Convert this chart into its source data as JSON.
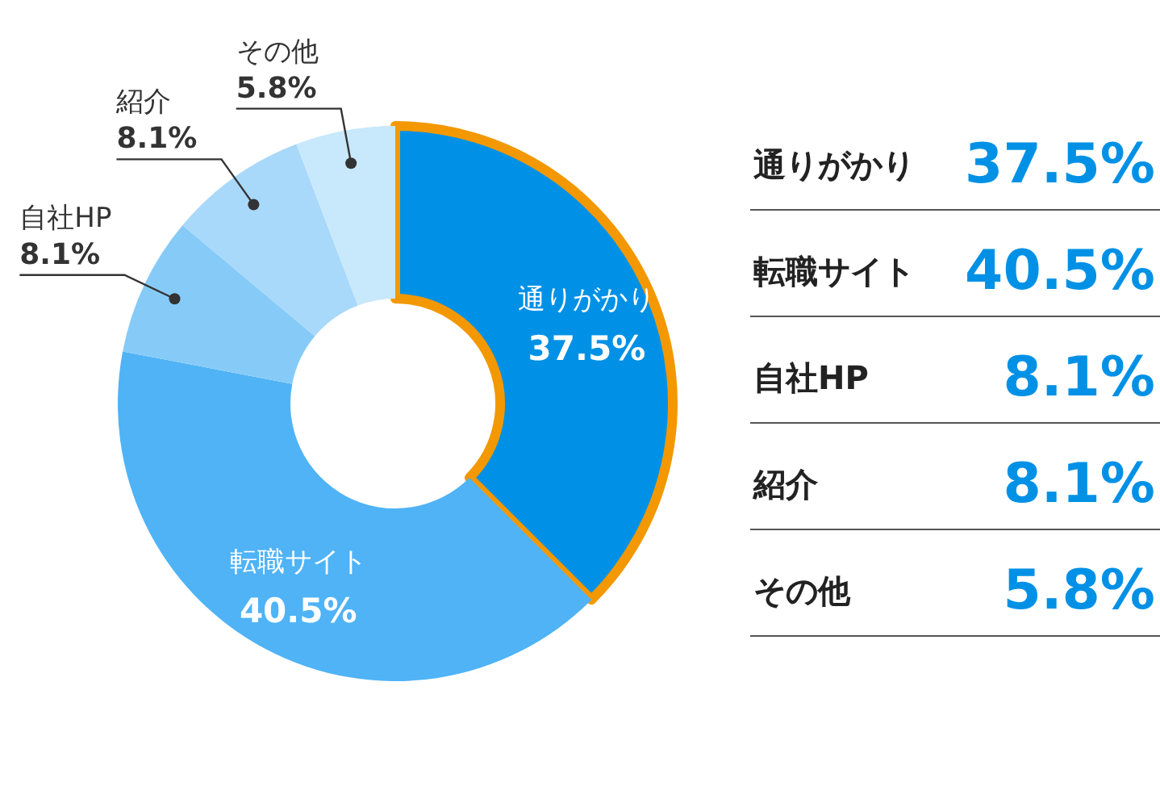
{
  "chart_data": {
    "type": "donut",
    "categories": [
      "通りがかり",
      "転職サイト",
      "自社HP",
      "紹介",
      "その他"
    ],
    "values": [
      37.5,
      40.5,
      8.1,
      8.1,
      5.8
    ],
    "value_labels": [
      "37.5%",
      "40.5%",
      "8.1%",
      "8.1%",
      "5.8%"
    ],
    "colors": [
      "#0091e6",
      "#4fb3f6",
      "#86cbf8",
      "#a8d8fa",
      "#c8e8fc"
    ],
    "data_labels": true
  }
}
